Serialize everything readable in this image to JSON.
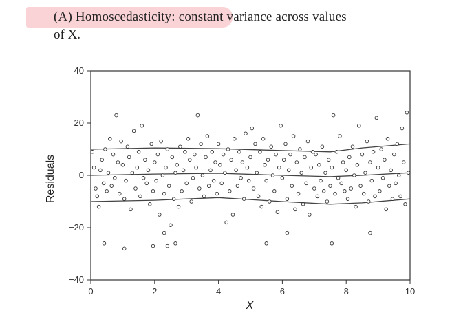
{
  "caption": {
    "line1": "(A) Homoscedasticity: constant variance across values",
    "line2": "of X.",
    "highlight_color": "#f5afb4"
  },
  "chart_data": {
    "type": "scatter",
    "title": "(A) Homoscedasticity: constant variance across values of X.",
    "xlabel": "X",
    "ylabel": "Residuals",
    "xlim": [
      0,
      10
    ],
    "ylim": [
      -40,
      40
    ],
    "xticks": [
      0,
      2,
      4,
      6,
      8,
      10
    ],
    "yticks": [
      40,
      20,
      0,
      -20,
      -40
    ],
    "grid": false,
    "marker": "open-circle",
    "reference_lines": [
      {
        "name": "upper",
        "points": [
          [
            0,
            10
          ],
          [
            2,
            10.5
          ],
          [
            4,
            10.2
          ],
          [
            6,
            9.5
          ],
          [
            7.5,
            9
          ],
          [
            8.5,
            10.5
          ],
          [
            10,
            12
          ]
        ]
      },
      {
        "name": "center",
        "points": [
          [
            0,
            0
          ],
          [
            2,
            0.5
          ],
          [
            4,
            0.8
          ],
          [
            6,
            0
          ],
          [
            7.5,
            -0.5
          ],
          [
            8.5,
            0
          ],
          [
            10,
            1
          ]
        ]
      },
      {
        "name": "lower",
        "points": [
          [
            0,
            -10
          ],
          [
            2,
            -9.5
          ],
          [
            4,
            -8.5
          ],
          [
            6,
            -10
          ],
          [
            7.5,
            -11
          ],
          [
            8.5,
            -10.5
          ],
          [
            10,
            -9
          ]
        ]
      }
    ],
    "points": [
      [
        0.05,
        9
      ],
      [
        0.1,
        3
      ],
      [
        0.15,
        -5
      ],
      [
        0.2,
        -8
      ],
      [
        0.25,
        -12
      ],
      [
        0.3,
        2
      ],
      [
        0.35,
        6
      ],
      [
        0.4,
        -3
      ],
      [
        0.45,
        10
      ],
      [
        0.5,
        -6
      ],
      [
        0.55,
        1
      ],
      [
        0.6,
        14
      ],
      [
        0.65,
        -4
      ],
      [
        0.7,
        8
      ],
      [
        0.75,
        -1
      ],
      [
        0.8,
        23
      ],
      [
        0.85,
        5
      ],
      [
        0.9,
        -7
      ],
      [
        0.95,
        13
      ],
      [
        0.42,
        -26
      ],
      [
        1.0,
        4
      ],
      [
        1.05,
        -9
      ],
      [
        1.1,
        -2
      ],
      [
        1.15,
        11
      ],
      [
        1.2,
        7
      ],
      [
        1.25,
        -13
      ],
      [
        1.3,
        1
      ],
      [
        1.35,
        17
      ],
      [
        1.4,
        -5
      ],
      [
        1.45,
        3
      ],
      [
        1.5,
        9
      ],
      [
        1.55,
        -8
      ],
      [
        1.6,
        19
      ],
      [
        1.65,
        -1
      ],
      [
        1.7,
        6
      ],
      [
        1.75,
        -3
      ],
      [
        1.8,
        2
      ],
      [
        1.85,
        -11
      ],
      [
        1.9,
        12
      ],
      [
        1.95,
        -6
      ],
      [
        1.05,
        -28
      ],
      [
        1.95,
        -27
      ],
      [
        2.0,
        5
      ],
      [
        2.05,
        -2
      ],
      [
        2.1,
        8
      ],
      [
        2.15,
        -15
      ],
      [
        2.2,
        13
      ],
      [
        2.25,
        0
      ],
      [
        2.3,
        -7
      ],
      [
        2.35,
        3
      ],
      [
        2.4,
        10
      ],
      [
        2.45,
        -4
      ],
      [
        2.5,
        -19
      ],
      [
        2.55,
        7
      ],
      [
        2.6,
        -9
      ],
      [
        2.65,
        1
      ],
      [
        2.7,
        4
      ],
      [
        2.75,
        -12
      ],
      [
        2.8,
        11
      ],
      [
        2.85,
        -6
      ],
      [
        2.9,
        2
      ],
      [
        2.95,
        9
      ],
      [
        2.4,
        -27
      ],
      [
        2.65,
        -26
      ],
      [
        2.3,
        -22
      ],
      [
        3.0,
        -3
      ],
      [
        3.05,
        14
      ],
      [
        3.1,
        6
      ],
      [
        3.15,
        -10
      ],
      [
        3.2,
        -1
      ],
      [
        3.25,
        8
      ],
      [
        3.3,
        3
      ],
      [
        3.35,
        23
      ],
      [
        3.4,
        -5
      ],
      [
        3.45,
        12
      ],
      [
        3.5,
        0
      ],
      [
        3.55,
        -8
      ],
      [
        3.6,
        7
      ],
      [
        3.65,
        15
      ],
      [
        3.7,
        -4
      ],
      [
        3.75,
        2
      ],
      [
        3.8,
        9
      ],
      [
        3.85,
        -2
      ],
      [
        3.9,
        5
      ],
      [
        3.95,
        -7
      ],
      [
        4.0,
        12
      ],
      [
        4.05,
        4
      ],
      [
        4.1,
        -3
      ],
      [
        4.15,
        8
      ],
      [
        4.2,
        1
      ],
      [
        4.25,
        -18
      ],
      [
        4.3,
        10
      ],
      [
        4.35,
        -6
      ],
      [
        4.4,
        6
      ],
      [
        4.45,
        -15
      ],
      [
        4.5,
        14
      ],
      [
        4.55,
        2
      ],
      [
        4.6,
        -4
      ],
      [
        4.65,
        9
      ],
      [
        4.7,
        -1
      ],
      [
        4.75,
        5
      ],
      [
        4.8,
        -9
      ],
      [
        4.85,
        16
      ],
      [
        4.9,
        3
      ],
      [
        4.95,
        -2
      ],
      [
        5.0,
        7
      ],
      [
        5.05,
        18
      ],
      [
        5.1,
        -5
      ],
      [
        5.15,
        12
      ],
      [
        5.2,
        1
      ],
      [
        5.25,
        -8
      ],
      [
        5.3,
        9
      ],
      [
        5.35,
        -12
      ],
      [
        5.4,
        14
      ],
      [
        5.45,
        4
      ],
      [
        5.5,
        -2
      ],
      [
        5.55,
        6
      ],
      [
        5.6,
        -10
      ],
      [
        5.65,
        11
      ],
      [
        5.7,
        0
      ],
      [
        5.75,
        -6
      ],
      [
        5.8,
        8
      ],
      [
        5.85,
        -14
      ],
      [
        5.9,
        3
      ],
      [
        5.95,
        19
      ],
      [
        5.5,
        -26
      ],
      [
        6.0,
        -1
      ],
      [
        6.05,
        6
      ],
      [
        6.1,
        12
      ],
      [
        6.15,
        -9
      ],
      [
        6.2,
        2
      ],
      [
        6.25,
        8
      ],
      [
        6.3,
        -4
      ],
      [
        6.35,
        15
      ],
      [
        6.4,
        -13
      ],
      [
        6.45,
        5
      ],
      [
        6.5,
        -7
      ],
      [
        6.55,
        10
      ],
      [
        6.6,
        1
      ],
      [
        6.65,
        -11
      ],
      [
        6.7,
        7
      ],
      [
        6.75,
        -3
      ],
      [
        6.8,
        13
      ],
      [
        6.85,
        -15
      ],
      [
        6.9,
        3
      ],
      [
        6.95,
        9
      ],
      [
        6.15,
        -22
      ],
      [
        7.0,
        -5
      ],
      [
        7.05,
        8
      ],
      [
        7.1,
        -8
      ],
      [
        7.15,
        4
      ],
      [
        7.2,
        -2
      ],
      [
        7.25,
        11
      ],
      [
        7.3,
        -6
      ],
      [
        7.35,
        1
      ],
      [
        7.4,
        -10
      ],
      [
        7.45,
        6
      ],
      [
        7.5,
        -4
      ],
      [
        7.55,
        3
      ],
      [
        7.6,
        23
      ],
      [
        7.65,
        -7
      ],
      [
        7.7,
        9
      ],
      [
        7.75,
        -1
      ],
      [
        7.8,
        15
      ],
      [
        7.85,
        -3
      ],
      [
        7.9,
        5
      ],
      [
        7.95,
        -6
      ],
      [
        7.55,
        -26
      ],
      [
        8.0,
        2
      ],
      [
        8.05,
        -9
      ],
      [
        8.1,
        7
      ],
      [
        8.15,
        -5
      ],
      [
        8.2,
        11
      ],
      [
        8.25,
        0
      ],
      [
        8.3,
        -12
      ],
      [
        8.35,
        4
      ],
      [
        8.4,
        19
      ],
      [
        8.45,
        -4
      ],
      [
        8.5,
        8
      ],
      [
        8.55,
        -7
      ],
      [
        8.6,
        1
      ],
      [
        8.65,
        13
      ],
      [
        8.7,
        -10
      ],
      [
        8.75,
        5
      ],
      [
        8.8,
        -2
      ],
      [
        8.85,
        9
      ],
      [
        8.9,
        -8
      ],
      [
        8.95,
        22
      ],
      [
        8.75,
        -22
      ],
      [
        9.0,
        3
      ],
      [
        9.05,
        -6
      ],
      [
        9.1,
        10
      ],
      [
        9.15,
        -1
      ],
      [
        9.2,
        6
      ],
      [
        9.25,
        -13
      ],
      [
        9.3,
        14
      ],
      [
        9.35,
        -4
      ],
      [
        9.4,
        2
      ],
      [
        9.45,
        -9
      ],
      [
        9.5,
        8
      ],
      [
        9.55,
        -3
      ],
      [
        9.6,
        12
      ],
      [
        9.65,
        0
      ],
      [
        9.7,
        -8
      ],
      [
        9.75,
        18
      ],
      [
        9.8,
        5
      ],
      [
        9.85,
        -11
      ],
      [
        9.9,
        24
      ],
      [
        9.95,
        1
      ]
    ]
  }
}
